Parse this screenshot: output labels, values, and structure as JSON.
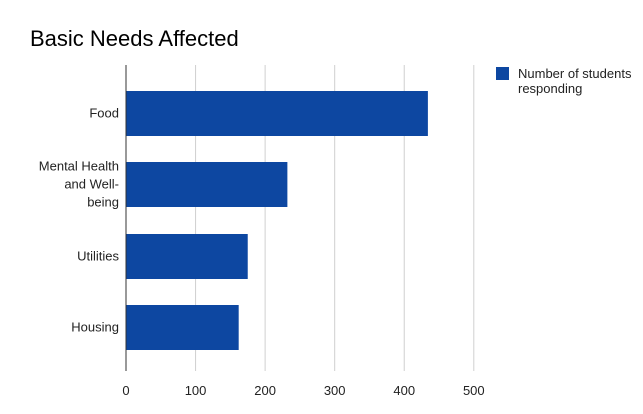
{
  "chart_data": {
    "type": "bar",
    "orientation": "horizontal",
    "title": "Basic Needs Affected",
    "categories": [
      "Food",
      "Mental Health and Well-being",
      "Utilities",
      "Housing"
    ],
    "category_lines": [
      [
        "Food"
      ],
      [
        "Mental Health",
        "and Well-",
        "being"
      ],
      [
        "Utilities"
      ],
      [
        "Housing"
      ]
    ],
    "series": [
      {
        "name": "Number of students responding",
        "values": [
          434,
          232,
          175,
          162
        ],
        "color": "#0d47a1"
      }
    ],
    "legend": {
      "position": "right",
      "lines": [
        "Number of students",
        "responding"
      ]
    },
    "xlim": [
      0,
      500
    ],
    "xticks": [
      "0",
      "100",
      "200",
      "300",
      "400",
      "500"
    ],
    "grid": true,
    "xlabel": "",
    "ylabel": ""
  }
}
